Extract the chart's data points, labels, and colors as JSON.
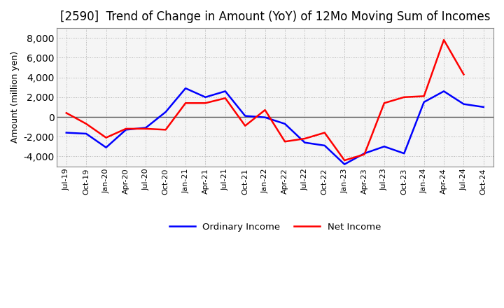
{
  "title": "[2590]  Trend of Change in Amount (YoY) of 12Mo Moving Sum of Incomes",
  "ylabel": "Amount (million yen)",
  "background_color": "#ffffff",
  "plot_bg_color": "#f5f5f5",
  "grid_color": "#aaaaaa",
  "x_labels": [
    "Jul-19",
    "Oct-19",
    "Jan-20",
    "Apr-20",
    "Jul-20",
    "Oct-20",
    "Jan-21",
    "Apr-21",
    "Jul-21",
    "Oct-21",
    "Jan-22",
    "Apr-22",
    "Jul-22",
    "Oct-22",
    "Jan-23",
    "Apr-23",
    "Jul-23",
    "Oct-23",
    "Jan-24",
    "Apr-24",
    "Jul-24",
    "Oct-24"
  ],
  "ordinary_income": [
    -1600,
    -1700,
    -3100,
    -1300,
    -1100,
    500,
    2900,
    2000,
    2600,
    100,
    -50,
    -700,
    -2600,
    -2900,
    -4800,
    -3700,
    -3000,
    -3700,
    1500,
    2600,
    1300,
    1000
  ],
  "net_income": [
    400,
    -700,
    -2100,
    -1200,
    -1200,
    -1300,
    1400,
    1400,
    1900,
    -900,
    700,
    -2500,
    -2200,
    -1600,
    -4400,
    -3800,
    1400,
    2000,
    2100,
    7800,
    4300,
    null
  ],
  "ordinary_color": "#0000ff",
  "net_color": "#ff0000",
  "ylim": [
    -5000,
    9000
  ],
  "yticks": [
    -4000,
    -2000,
    0,
    2000,
    4000,
    6000,
    8000
  ],
  "title_fontsize": 12,
  "legend_labels": [
    "Ordinary Income",
    "Net Income"
  ]
}
